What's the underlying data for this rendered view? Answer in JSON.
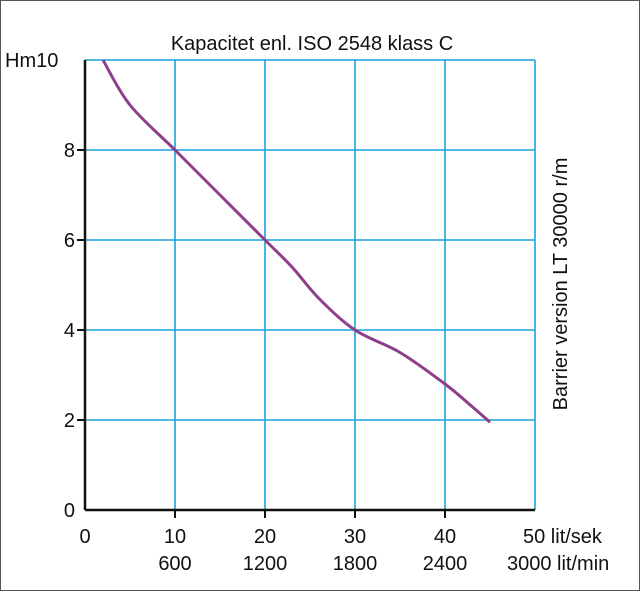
{
  "chart_data": {
    "type": "line",
    "title": "Kapacitet enl. ISO 2548 klass C",
    "y_unit_label": "Hm",
    "right_label": "Barrier version LT 30000 r/m",
    "x": [
      2,
      5,
      10,
      15,
      20,
      23,
      26,
      30,
      35,
      40,
      43,
      45
    ],
    "y": [
      10.0,
      9.0,
      8.0,
      7.0,
      6.0,
      5.4,
      4.7,
      4.0,
      3.5,
      2.8,
      2.3,
      1.95
    ],
    "xlim": [
      0,
      50
    ],
    "ylim": [
      0,
      10
    ],
    "x_ticks": [
      "0",
      "10",
      "20",
      "30",
      "40"
    ],
    "x_last_tick": "50",
    "x_unit_top": "lit/sek",
    "x_ticks_bottom": [
      "600",
      "1200",
      "1800",
      "2400"
    ],
    "x_last_tick_bottom": "3000",
    "x_unit_bottom": "lit/min",
    "y_ticks": [
      "0",
      "2",
      "4",
      "6",
      "8"
    ],
    "y_top_tick": "10",
    "grid": true,
    "colors": {
      "grid": "#1aa3dc",
      "curve": "#8e3f8c",
      "axis": "#111111"
    }
  }
}
